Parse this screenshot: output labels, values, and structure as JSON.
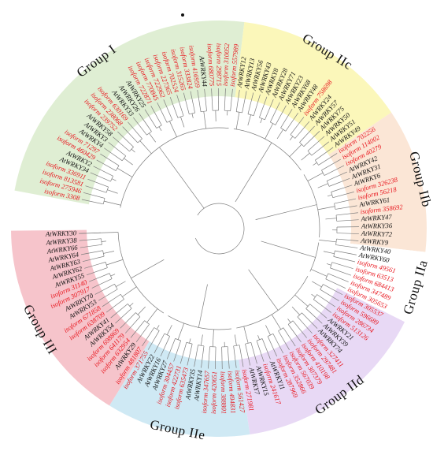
{
  "colors": {
    "isoform_label": "#e8141c",
    "at_label": "#111111",
    "group_I": "#dfeed3",
    "group_IIa": "#ffffff",
    "group_IIb": "#fbe6d6",
    "group_IIc": "#fbf7ba",
    "group_IId": "#e8d9f5",
    "group_IIe": "#cfe9f4",
    "group_III": "#f6c4cb",
    "branch": "#7d7d7d"
  },
  "groups": [
    {
      "id": "III",
      "label": "Group III",
      "color_key": "group_III"
    },
    {
      "id": "IIe",
      "label": "Group IIe",
      "color_key": "group_IIe"
    },
    {
      "id": "IId",
      "label": "Group IId",
      "color_key": "group_IId"
    },
    {
      "id": "IIa",
      "label": "Group IIa",
      "color_key": "group_IIa"
    },
    {
      "id": "IIb",
      "label": "Group IIb",
      "color_key": "group_IIb"
    },
    {
      "id": "IIc",
      "label": "Group IIc",
      "color_key": "group_IIc"
    },
    {
      "id": "I",
      "label": "Group I",
      "color_key": "group_I"
    }
  ],
  "leaves": [
    {
      "label": "isoform 3308",
      "kind": "iso",
      "group": "I"
    },
    {
      "label": "isoform 275946",
      "kind": "iso",
      "group": "I"
    },
    {
      "label": "isoform 813581",
      "kind": "iso",
      "group": "I"
    },
    {
      "label": "isoform 336911",
      "kind": "iso",
      "group": "I"
    },
    {
      "label": "AtWRKY34",
      "kind": "at",
      "group": "I"
    },
    {
      "label": "AtWRKY2",
      "kind": "at",
      "group": "I"
    },
    {
      "label": "isoform 460429",
      "kind": "iso",
      "group": "I"
    },
    {
      "label": "isoform 71297",
      "kind": "iso",
      "group": "I"
    },
    {
      "label": "AtWRKY4",
      "kind": "at",
      "group": "I"
    },
    {
      "label": "AtWRKY3",
      "kind": "at",
      "group": "I"
    },
    {
      "label": "AtWRKY58",
      "kind": "at",
      "group": "I"
    },
    {
      "label": "isoform 239752",
      "kind": "iso",
      "group": "I"
    },
    {
      "label": "isoform 238068",
      "kind": "iso",
      "group": "I"
    },
    {
      "label": "isoform 630169",
      "kind": "iso",
      "group": "I"
    },
    {
      "label": "AtWRKY33",
      "kind": "at",
      "group": "I"
    },
    {
      "label": "AtWRKY26",
      "kind": "at",
      "group": "I"
    },
    {
      "label": "AtWRKY25",
      "kind": "at",
      "group": "I"
    },
    {
      "label": "isoform 722871",
      "kind": "iso",
      "group": "I"
    },
    {
      "label": "isoform 770845",
      "kind": "iso",
      "group": "I"
    },
    {
      "label": "isoform 722962",
      "kind": "iso",
      "group": "I"
    },
    {
      "label": "isoform 227365",
      "kind": "iso",
      "group": "I"
    },
    {
      "label": "isoform 702524",
      "kind": "iso",
      "group": "I"
    },
    {
      "label": "isoform 315265",
      "kind": "iso",
      "group": "I"
    },
    {
      "label": "isoform 333824",
      "kind": "iso",
      "group": "I"
    },
    {
      "label": "isoform 416959",
      "kind": "iso",
      "group": "I"
    },
    {
      "label": "AtWRKY44",
      "kind": "at",
      "group": "I"
    },
    {
      "label": "isoform 680775",
      "kind": "iso",
      "group": "I"
    },
    {
      "label": "isoform 298715",
      "kind": "iso",
      "group": "I"
    },
    {
      "label": "isoform 310052",
      "kind": "iso",
      "group": "I"
    },
    {
      "label": "isoform 557989",
      "kind": "iso",
      "group": "I"
    },
    {
      "label": "AtWRKY12",
      "kind": "at",
      "group": "IIc"
    },
    {
      "label": "AtWRKY13",
      "kind": "at",
      "group": "IIc"
    },
    {
      "label": "AtWRKY56",
      "kind": "at",
      "group": "IIc"
    },
    {
      "label": "AtWRKY43",
      "kind": "at",
      "group": "IIc"
    },
    {
      "label": "AtWRKY8",
      "kind": "at",
      "group": "IIc"
    },
    {
      "label": "AtWRKY28",
      "kind": "at",
      "group": "IIc"
    },
    {
      "label": "AtWRKY71",
      "kind": "at",
      "group": "IIc"
    },
    {
      "label": "AtWRKY23",
      "kind": "at",
      "group": "IIc"
    },
    {
      "label": "AtWRKY68",
      "kind": "at",
      "group": "IIc"
    },
    {
      "label": "AtWRKY48",
      "kind": "at",
      "group": "IIc"
    },
    {
      "label": "isoform 758698",
      "kind": "iso",
      "group": "IIc"
    },
    {
      "label": "AtWRKY24",
      "kind": "at",
      "group": "IIc"
    },
    {
      "label": "AtWRKY57",
      "kind": "at",
      "group": "IIc"
    },
    {
      "label": "AtWRKY75",
      "kind": "at",
      "group": "IIc"
    },
    {
      "label": "AtWRKY50",
      "kind": "at",
      "group": "IIc"
    },
    {
      "label": "AtWRKY51",
      "kind": "at",
      "group": "IIc"
    },
    {
      "label": "AtWRKY49",
      "kind": "at",
      "group": "IIc"
    },
    {
      "label": "isoform 702256",
      "kind": "iso",
      "group": "IIb"
    },
    {
      "label": "isoform 114002",
      "kind": "iso",
      "group": "IIb"
    },
    {
      "label": "isoform 40279",
      "kind": "iso",
      "group": "IIb"
    },
    {
      "label": "AtWRKY42",
      "kind": "at",
      "group": "IIb"
    },
    {
      "label": "AtWRKY31",
      "kind": "at",
      "group": "IIb"
    },
    {
      "label": "AtWRKY6",
      "kind": "at",
      "group": "IIb"
    },
    {
      "label": "isoform 326238",
      "kind": "iso",
      "group": "IIb"
    },
    {
      "label": "isoform 56218",
      "kind": "iso",
      "group": "IIb"
    },
    {
      "label": "AtWRKY61",
      "kind": "at",
      "group": "IIb"
    },
    {
      "label": "isoform 358692",
      "kind": "iso",
      "group": "IIb"
    },
    {
      "label": "AtWRKY47",
      "kind": "at",
      "group": "IIb"
    },
    {
      "label": "AtWRKY36",
      "kind": "at",
      "group": "IIb"
    },
    {
      "label": "AtWRKY72",
      "kind": "at",
      "group": "IIb"
    },
    {
      "label": "AtWRKY9",
      "kind": "at",
      "group": "IIb"
    },
    {
      "label": "AtWRKY40",
      "kind": "at",
      "group": "IIa"
    },
    {
      "label": "AtWRKY60",
      "kind": "at",
      "group": "IIa"
    },
    {
      "label": "isoform 49561",
      "kind": "iso",
      "group": "IIa"
    },
    {
      "label": "isoform 63513",
      "kind": "iso",
      "group": "IIa"
    },
    {
      "label": "isoform 684413",
      "kind": "iso",
      "group": "IIa"
    },
    {
      "label": "isoform 347489",
      "kind": "iso",
      "group": "IIa"
    },
    {
      "label": "isoform 305653",
      "kind": "iso",
      "group": "IIa"
    },
    {
      "label": "isoform 305537",
      "kind": "iso",
      "group": "IId"
    },
    {
      "label": "isoform 596689",
      "kind": "iso",
      "group": "IId"
    },
    {
      "label": "isoform 286734",
      "kind": "iso",
      "group": "IId"
    },
    {
      "label": "isoform 513126",
      "kind": "iso",
      "group": "IId"
    },
    {
      "label": "AtWRKY21",
      "kind": "at",
      "group": "IId"
    },
    {
      "label": "AtWRKY39",
      "kind": "at",
      "group": "IId"
    },
    {
      "label": "AtWRKY74",
      "kind": "at",
      "group": "IId"
    },
    {
      "label": "isoform 327411",
      "kind": "iso",
      "group": "IId"
    },
    {
      "label": "isoform 297481",
      "kind": "iso",
      "group": "IId"
    },
    {
      "label": "isoform 410198",
      "kind": "iso",
      "group": "IId"
    },
    {
      "label": "isoform 307379",
      "kind": "iso",
      "group": "IId"
    },
    {
      "label": "isoform 567039",
      "kind": "iso",
      "group": "IId"
    },
    {
      "label": "isoform 352866",
      "kind": "iso",
      "group": "IId"
    },
    {
      "label": "isoform 287969",
      "kind": "iso",
      "group": "IId"
    },
    {
      "label": "AtWRKY11",
      "kind": "at",
      "group": "IId"
    },
    {
      "label": "isoform 241617",
      "kind": "iso",
      "group": "IId"
    },
    {
      "label": "AtWRKY15",
      "kind": "at",
      "group": "IId"
    },
    {
      "label": "AtWRKY7",
      "kind": "at",
      "group": "IId"
    },
    {
      "label": "isoform 271981",
      "kind": "iso",
      "group": "IId"
    },
    {
      "label": "isoform 561427",
      "kind": "iso",
      "group": "IIe"
    },
    {
      "label": "isoform 494831",
      "kind": "iso",
      "group": "IIe"
    },
    {
      "label": "isoform 388801",
      "kind": "iso",
      "group": "IIe"
    },
    {
      "label": "isoform 420651",
      "kind": "iso",
      "group": "IIe"
    },
    {
      "label": "isoform 347657",
      "kind": "iso",
      "group": "IIe"
    },
    {
      "label": "AtWRKY14",
      "kind": "at",
      "group": "IIe"
    },
    {
      "label": "AtWRKY35",
      "kind": "at",
      "group": "IIe"
    },
    {
      "label": "isoform 635473",
      "kind": "iso",
      "group": "IIe"
    },
    {
      "label": "isoform 422731",
      "kind": "iso",
      "group": "IIe"
    },
    {
      "label": "isoform 304457",
      "kind": "iso",
      "group": "IIe"
    },
    {
      "label": "AtWRKY27",
      "kind": "at",
      "group": "IIe"
    },
    {
      "label": "AtWRKY16",
      "kind": "at",
      "group": "IIe"
    },
    {
      "label": "AtWRKY22",
      "kind": "at",
      "group": "IIe"
    },
    {
      "label": "isoform 371755",
      "kind": "iso",
      "group": "IIe"
    },
    {
      "label": "isoform 481807",
      "kind": "iso",
      "group": "III"
    },
    {
      "label": "AtWRKY29",
      "kind": "at",
      "group": "III"
    },
    {
      "label": "isoform 632954",
      "kind": "iso",
      "group": "III"
    },
    {
      "label": "isoform 641179",
      "kind": "iso",
      "group": "III"
    },
    {
      "label": "isoform 698869",
      "kind": "iso",
      "group": "III"
    },
    {
      "label": "AtWRKY54",
      "kind": "at",
      "group": "III"
    },
    {
      "label": "AtWRKY41",
      "kind": "at",
      "group": "III"
    },
    {
      "label": "isoform 638709",
      "kind": "iso",
      "group": "III"
    },
    {
      "label": "isoform 671858",
      "kind": "iso",
      "group": "III"
    },
    {
      "label": "AtWRKY53",
      "kind": "at",
      "group": "III"
    },
    {
      "label": "AtWRKY70",
      "kind": "at",
      "group": "III"
    },
    {
      "label": "isoform 307917",
      "kind": "iso",
      "group": "III"
    },
    {
      "label": "isoform 31140",
      "kind": "iso",
      "group": "III"
    },
    {
      "label": "AtWRKY55",
      "kind": "at",
      "group": "III"
    },
    {
      "label": "AtWRKY62",
      "kind": "at",
      "group": "III"
    },
    {
      "label": "AtWRKY63",
      "kind": "at",
      "group": "III"
    },
    {
      "label": "AtWRKY64",
      "kind": "at",
      "group": "III"
    },
    {
      "label": "AtWRKY66",
      "kind": "at",
      "group": "III"
    },
    {
      "label": "AtWRKY38",
      "kind": "at",
      "group": "III"
    },
    {
      "label": "AtWRKY30",
      "kind": "at",
      "group": "III"
    }
  ]
}
